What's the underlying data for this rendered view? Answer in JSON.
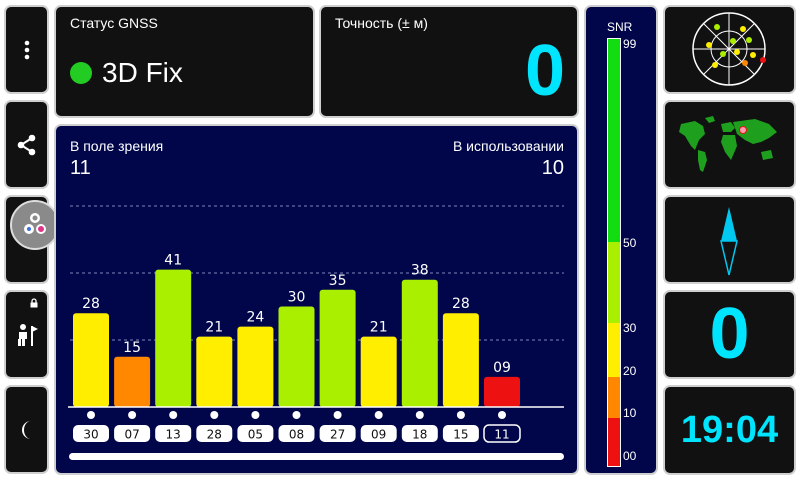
{
  "status": {
    "gnss_label": "Статус GNSS",
    "fix_text": "3D Fix",
    "fix_color": "#22cc22"
  },
  "accuracy": {
    "label": "Точность (± м)",
    "value": "0"
  },
  "sky": {
    "in_view_label": "В поле зрения",
    "in_view_value": "11",
    "in_use_label": "В использовании",
    "in_use_value": "10"
  },
  "chart_data": {
    "type": "bar",
    "categories": [
      "30",
      "07",
      "13",
      "28",
      "05",
      "08",
      "27",
      "09",
      "18",
      "15",
      "11"
    ],
    "values": [
      28,
      15,
      41,
      21,
      24,
      30,
      35,
      21,
      38,
      28,
      9
    ],
    "value_labels": [
      "28",
      "15",
      "41",
      "21",
      "24",
      "30",
      "35",
      "21",
      "38",
      "28",
      "09"
    ],
    "used_in_fix": [
      true,
      true,
      true,
      true,
      true,
      true,
      true,
      true,
      true,
      true,
      false
    ],
    "ylim": [
      0,
      60
    ],
    "grid_values": [
      20,
      40,
      60
    ],
    "color_scale": {
      "below_10": "#ee1111",
      "10_to_20": "#ff8800",
      "20_to_30": "#ffee00",
      "30_to_50": "#aaee00",
      "above_50": "#11dd11"
    }
  },
  "snr_legend": {
    "title": "SNR",
    "ticks": [
      "99",
      "50",
      "30",
      "20",
      "10",
      "00"
    ]
  },
  "speed": {
    "value": "0"
  },
  "clock": {
    "time": "19:04"
  },
  "colors": {
    "accent": "#00e5ff",
    "panel_navy": "#01064a",
    "panel_dark": "#111111"
  }
}
